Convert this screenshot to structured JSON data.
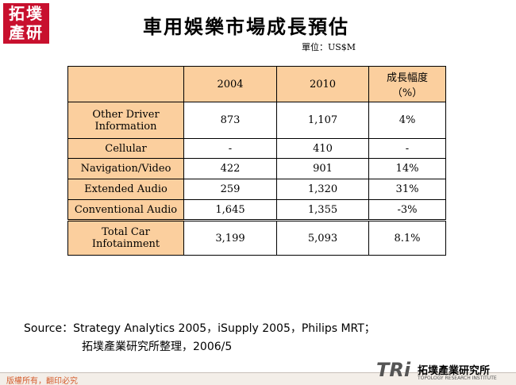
{
  "logo": {
    "text": "拓墣產研"
  },
  "header": {
    "title": "車用娛樂市場成長預估",
    "unit": "單位：US$M"
  },
  "table": {
    "columns": [
      "2004",
      "2010",
      [
        "成長幅度",
        "（%）"
      ]
    ],
    "rows": [
      [
        "Other Driver Information",
        "873",
        "1,107",
        "4%"
      ],
      [
        "Cellular",
        "-",
        "410",
        "-"
      ],
      [
        "Navigation/Video",
        "422",
        "901",
        "14%"
      ],
      [
        "Extended Audio",
        "259",
        "1,320",
        "31%"
      ],
      [
        "Conventional Audio",
        "1,645",
        "1,355",
        "-3%"
      ],
      [
        "Total Car Infotainment",
        "3,199",
        "5,093",
        "8.1%"
      ]
    ]
  },
  "source": [
    "Source：Strategy Analytics 2005，iSupply 2005，Philips MRT；",
    "拓墣產業研究所整理，2006/5"
  ],
  "footer": {
    "copyright": "版權所有，翻印必究",
    "brand": "TRi",
    "brand_name": "拓墣產業研究所",
    "brand_sub": "TOPOLOGY RESEARCH INSTITUTE"
  }
}
